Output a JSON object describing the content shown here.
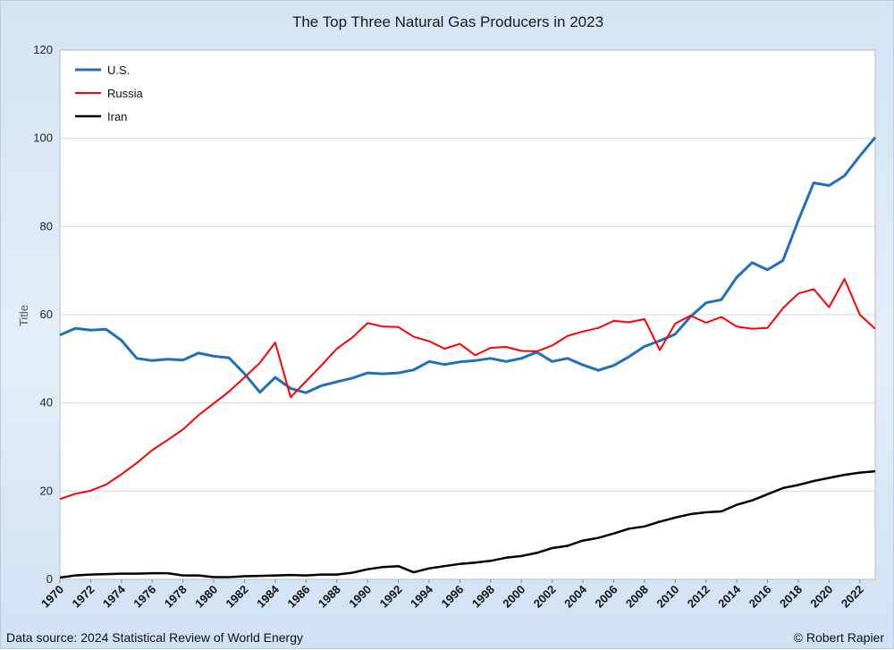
{
  "chart_data": {
    "type": "line",
    "title": "The Top Three Natural Gas Producers in 2023",
    "ylabel": "Title",
    "xlabel": "",
    "ylim": [
      0,
      120
    ],
    "yticks": [
      0,
      20,
      40,
      60,
      80,
      100,
      120
    ],
    "x": [
      1970,
      1971,
      1972,
      1973,
      1974,
      1975,
      1976,
      1977,
      1978,
      1979,
      1980,
      1981,
      1982,
      1983,
      1984,
      1985,
      1986,
      1987,
      1988,
      1989,
      1990,
      1991,
      1992,
      1993,
      1994,
      1995,
      1996,
      1997,
      1998,
      1999,
      2000,
      2001,
      2002,
      2003,
      2004,
      2005,
      2006,
      2007,
      2008,
      2009,
      2010,
      2011,
      2012,
      2013,
      2014,
      2015,
      2016,
      2017,
      2018,
      2019,
      2020,
      2021,
      2022,
      2023
    ],
    "xticks": [
      "1970",
      "1972",
      "1974",
      "1976",
      "1978",
      "1980",
      "1982",
      "1984",
      "1986",
      "1988",
      "1990",
      "1992",
      "1994",
      "1996",
      "1998",
      "2000",
      "2002",
      "2004",
      "2006",
      "2008",
      "2010",
      "2012",
      "2014",
      "2016",
      "2018",
      "2020",
      "2022"
    ],
    "grid": true,
    "legend_position": "top-left",
    "series": [
      {
        "name": "U.S.",
        "color": "#1f6fbf",
        "values": [
          55.4,
          56.9,
          56.5,
          56.7,
          54.2,
          50.1,
          49.6,
          49.9,
          49.7,
          51.3,
          50.6,
          50.2,
          46.6,
          42.4,
          45.8,
          43.3,
          42.3,
          43.9,
          44.8,
          45.6,
          46.8,
          46.6,
          46.8,
          47.5,
          49.4,
          48.7,
          49.3,
          49.6,
          50.1,
          49.4,
          50.1,
          51.5,
          49.4,
          50.1,
          48.6,
          47.4,
          48.5,
          50.5,
          52.8,
          54.1,
          55.6,
          59.6,
          62.7,
          63.4,
          68.5,
          71.8,
          70.2,
          72.3,
          81.4,
          89.9,
          89.3,
          91.5,
          96.0,
          100.2
        ]
      },
      {
        "name": "Russia",
        "color": "#ff0000",
        "values": [
          18.2,
          19.4,
          20.1,
          21.5,
          23.8,
          26.4,
          29.3,
          31.6,
          34.0,
          37.2,
          39.9,
          42.6,
          45.8,
          49.1,
          53.7,
          41.3,
          44.9,
          48.5,
          52.3,
          54.8,
          58.1,
          57.3,
          57.2,
          55.0,
          54.0,
          52.3,
          53.4,
          50.8,
          52.5,
          52.7,
          51.8,
          51.7,
          53.0,
          55.2,
          56.2,
          57.0,
          58.6,
          58.3,
          59.0,
          52.0,
          58.0,
          59.8,
          58.2,
          59.5,
          57.3,
          56.8,
          57.0,
          61.5,
          64.8,
          65.8,
          61.7,
          68.1,
          60.0,
          56.8
        ]
      },
      {
        "name": "Iran",
        "color": "#000000",
        "values": [
          0.4,
          0.9,
          1.1,
          1.2,
          1.3,
          1.3,
          1.4,
          1.4,
          0.9,
          0.9,
          0.5,
          0.5,
          0.7,
          0.8,
          0.9,
          1.0,
          0.9,
          1.1,
          1.1,
          1.5,
          2.3,
          2.8,
          3.0,
          1.6,
          2.5,
          3.0,
          3.5,
          3.8,
          4.2,
          4.9,
          5.3,
          6.0,
          7.1,
          7.6,
          8.8,
          9.4,
          10.4,
          11.5,
          12.0,
          13.1,
          14.0,
          14.8,
          15.2,
          15.4,
          16.9,
          17.9,
          19.3,
          20.7,
          21.4,
          22.3,
          23.0,
          23.7,
          24.2,
          24.5
        ]
      }
    ]
  },
  "footer": {
    "source": "Data source: 2024 Statistical Review of World Energy",
    "credit": "© Robert Rapier"
  }
}
